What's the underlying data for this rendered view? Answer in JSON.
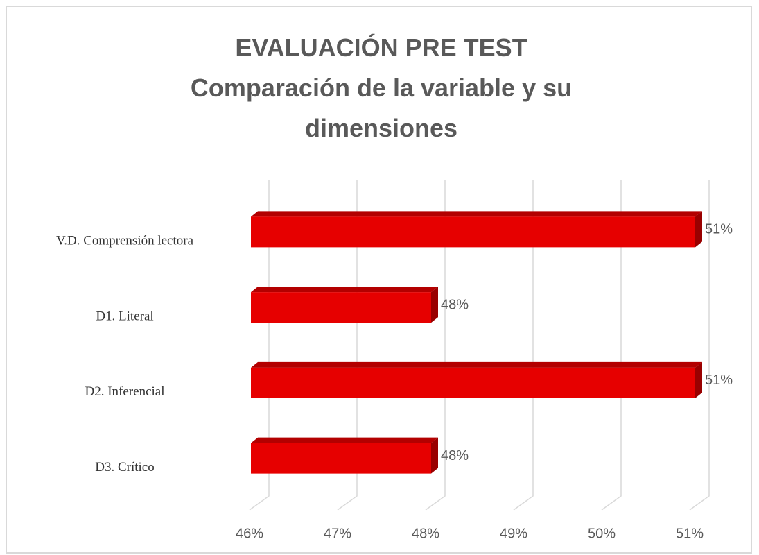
{
  "chart_data": {
    "type": "bar",
    "orientation": "horizontal",
    "title": "EVALUACIÓN PRE TEST",
    "subtitle": "Comparación de la variable y su dimensiones",
    "categories": [
      "V.D. Comprensión lectora",
      "D1. Literal",
      "D2. Inferencial",
      "D3. Crítico"
    ],
    "values": [
      51,
      48,
      51,
      48
    ],
    "value_labels": [
      "51%",
      "48%",
      "51%",
      "48%"
    ],
    "color": "#e60000",
    "xlim": [
      46,
      51
    ],
    "xticks": [
      {
        "value": 46,
        "label": "46%"
      },
      {
        "value": 47,
        "label": "47%"
      },
      {
        "value": 48,
        "label": "48%"
      },
      {
        "value": 49,
        "label": "49%"
      },
      {
        "value": 50,
        "label": "50%"
      },
      {
        "value": 51,
        "label": "51%"
      }
    ],
    "grid": true
  }
}
